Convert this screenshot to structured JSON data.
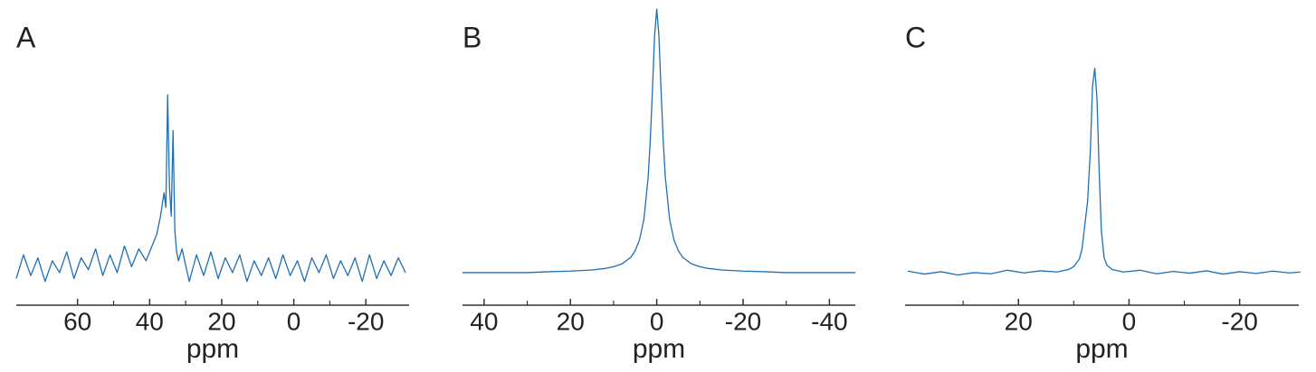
{
  "chart_data": [
    {
      "type": "line",
      "label": "A",
      "x_label": "ppm",
      "color": "#1f6fb5",
      "xlim": [
        77,
        -32
      ],
      "ylim": [
        0,
        100
      ],
      "xticks": [
        60,
        40,
        20,
        0,
        -20
      ],
      "xminor_ticks": [
        50,
        30,
        10,
        -10
      ],
      "x": [
        77,
        75,
        73,
        71,
        69,
        67,
        65,
        63,
        61,
        59,
        57,
        55,
        53,
        51,
        49,
        47,
        45,
        43,
        41,
        40,
        39,
        38,
        37,
        36,
        35.5,
        35,
        34.5,
        34,
        33.5,
        33,
        32.5,
        32,
        31,
        29,
        27,
        25,
        23,
        21,
        19,
        17,
        15,
        13,
        11,
        9,
        7,
        5,
        3,
        1,
        -1,
        -3,
        -5,
        -7,
        -9,
        -11,
        -13,
        -15,
        -17,
        -19,
        -21,
        -23,
        -25,
        -27,
        -29,
        -31
      ],
      "values": [
        9,
        17,
        10,
        16,
        8,
        15,
        11,
        18,
        9,
        16,
        12,
        19,
        10,
        17,
        11,
        20,
        13,
        19,
        15,
        18,
        21,
        24,
        30,
        38,
        33,
        71,
        40,
        30,
        59,
        25,
        18,
        15,
        19,
        8,
        17,
        10,
        18,
        9,
        16,
        11,
        17,
        8,
        15,
        10,
        16,
        9,
        17,
        10,
        15,
        8,
        16,
        11,
        17,
        9,
        15,
        10,
        16,
        8,
        17,
        9,
        15,
        10,
        16,
        11
      ]
    },
    {
      "type": "line",
      "label": "B",
      "x_label": "ppm",
      "color": "#1f6fb5",
      "xlim": [
        45,
        -46
      ],
      "ylim": [
        0,
        100
      ],
      "xticks": [
        40,
        20,
        0,
        -20,
        -40
      ],
      "xminor_ticks": [
        30,
        10,
        -10,
        -30
      ],
      "x": [
        45,
        40,
        35,
        30,
        25,
        20,
        15,
        12,
        10,
        8,
        6,
        5,
        4,
        3,
        2,
        1.5,
        1,
        0.5,
        0,
        -0.5,
        -1,
        -1.5,
        -2,
        -3,
        -4,
        -5,
        -6,
        -8,
        -10,
        -12,
        -15,
        -20,
        -25,
        -30,
        -35,
        -40,
        -46
      ],
      "values": [
        11,
        11,
        11,
        11,
        11.3,
        11.5,
        11.9,
        12.4,
        13,
        14,
        16.2,
        18.4,
        22,
        28.8,
        43,
        55.5,
        72.6,
        91,
        100,
        91,
        72.6,
        55.5,
        43,
        28.8,
        22,
        18.4,
        16.2,
        14,
        13,
        12.4,
        11.9,
        11.5,
        11.3,
        11,
        11,
        11,
        11
      ]
    },
    {
      "type": "line",
      "label": "C",
      "x_label": "ppm",
      "color": "#1f6fb5",
      "xlim": [
        40.5,
        -30.7
      ],
      "ylim": [
        0,
        100
      ],
      "xticks": [
        20,
        0,
        -20
      ],
      "xminor_ticks": [
        30,
        10,
        -10
      ],
      "x": [
        40,
        37,
        34,
        31,
        28,
        25,
        22,
        19,
        16,
        13,
        11,
        10,
        9,
        8.5,
        8,
        7.5,
        7,
        6.6,
        6.2,
        5.8,
        5.4,
        5,
        4.5,
        4,
        3,
        1,
        -2,
        -5,
        -8,
        -11,
        -14,
        -17,
        -20,
        -23,
        -26,
        -29,
        -31
      ],
      "values": [
        11.5,
        10.5,
        11.3,
        10.2,
        11,
        10.6,
        11.8,
        10.9,
        11.6,
        11.2,
        12,
        13,
        15.5,
        19,
        27,
        35,
        52,
        74,
        80,
        70,
        45,
        25,
        16,
        13.5,
        12,
        11.2,
        11.8,
        10.6,
        11.4,
        10.8,
        11.6,
        10.5,
        11.3,
        10.7,
        11.5,
        10.9,
        11.2
      ]
    }
  ]
}
